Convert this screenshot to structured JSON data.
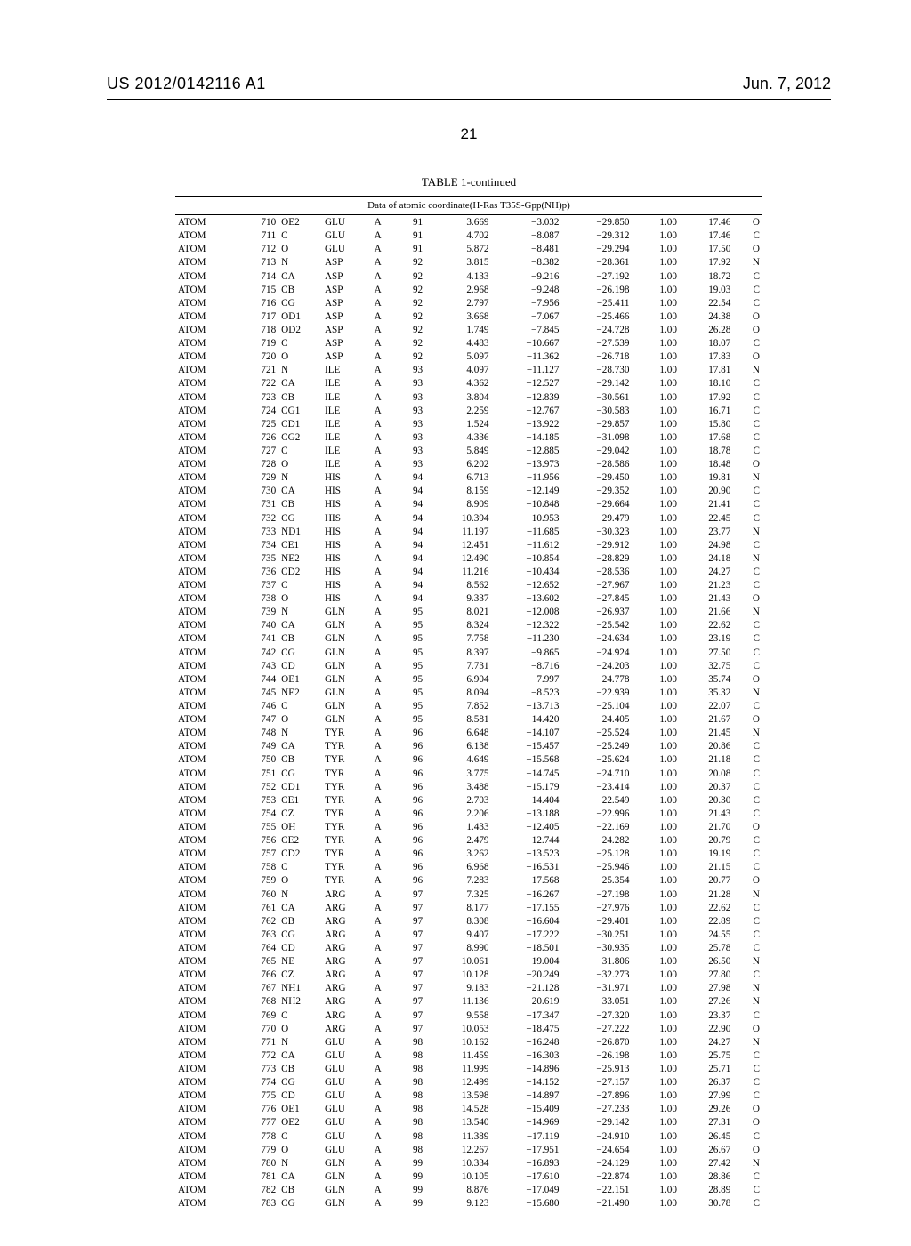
{
  "header": {
    "publication_number": "US 2012/0142116 A1",
    "date": "Jun. 7, 2012"
  },
  "page_number": "21",
  "table": {
    "title": "TABLE 1-continued",
    "subtitle": "Data of atomic coordinate(H-Ras T35S-Gpp(NH)p)",
    "rows": [
      [
        "ATOM",
        "710",
        "OE2",
        "GLU",
        "A",
        "91",
        "3.669",
        "−3.032",
        "−29.850",
        "1.00",
        "17.46",
        "O"
      ],
      [
        "ATOM",
        "711",
        "C",
        "GLU",
        "A",
        "91",
        "4.702",
        "−8.087",
        "−29.312",
        "1.00",
        "17.46",
        "C"
      ],
      [
        "ATOM",
        "712",
        "O",
        "GLU",
        "A",
        "91",
        "5.872",
        "−8.481",
        "−29.294",
        "1.00",
        "17.50",
        "O"
      ],
      [
        "ATOM",
        "713",
        "N",
        "ASP",
        "A",
        "92",
        "3.815",
        "−8.382",
        "−28.361",
        "1.00",
        "17.92",
        "N"
      ],
      [
        "ATOM",
        "714",
        "CA",
        "ASP",
        "A",
        "92",
        "4.133",
        "−9.216",
        "−27.192",
        "1.00",
        "18.72",
        "C"
      ],
      [
        "ATOM",
        "715",
        "CB",
        "ASP",
        "A",
        "92",
        "2.968",
        "−9.248",
        "−26.198",
        "1.00",
        "19.03",
        "C"
      ],
      [
        "ATOM",
        "716",
        "CG",
        "ASP",
        "A",
        "92",
        "2.797",
        "−7.956",
        "−25.411",
        "1.00",
        "22.54",
        "C"
      ],
      [
        "ATOM",
        "717",
        "OD1",
        "ASP",
        "A",
        "92",
        "3.668",
        "−7.067",
        "−25.466",
        "1.00",
        "24.38",
        "O"
      ],
      [
        "ATOM",
        "718",
        "OD2",
        "ASP",
        "A",
        "92",
        "1.749",
        "−7.845",
        "−24.728",
        "1.00",
        "26.28",
        "O"
      ],
      [
        "ATOM",
        "719",
        "C",
        "ASP",
        "A",
        "92",
        "4.483",
        "−10.667",
        "−27.539",
        "1.00",
        "18.07",
        "C"
      ],
      [
        "ATOM",
        "720",
        "O",
        "ASP",
        "A",
        "92",
        "5.097",
        "−11.362",
        "−26.718",
        "1.00",
        "17.83",
        "O"
      ],
      [
        "ATOM",
        "721",
        "N",
        "ILE",
        "A",
        "93",
        "4.097",
        "−11.127",
        "−28.730",
        "1.00",
        "17.81",
        "N"
      ],
      [
        "ATOM",
        "722",
        "CA",
        "ILE",
        "A",
        "93",
        "4.362",
        "−12.527",
        "−29.142",
        "1.00",
        "18.10",
        "C"
      ],
      [
        "ATOM",
        "723",
        "CB",
        "ILE",
        "A",
        "93",
        "3.804",
        "−12.839",
        "−30.561",
        "1.00",
        "17.92",
        "C"
      ],
      [
        "ATOM",
        "724",
        "CG1",
        "ILE",
        "A",
        "93",
        "2.259",
        "−12.767",
        "−30.583",
        "1.00",
        "16.71",
        "C"
      ],
      [
        "ATOM",
        "725",
        "CD1",
        "ILE",
        "A",
        "93",
        "1.524",
        "−13.922",
        "−29.857",
        "1.00",
        "15.80",
        "C"
      ],
      [
        "ATOM",
        "726",
        "CG2",
        "ILE",
        "A",
        "93",
        "4.336",
        "−14.185",
        "−31.098",
        "1.00",
        "17.68",
        "C"
      ],
      [
        "ATOM",
        "727",
        "C",
        "ILE",
        "A",
        "93",
        "5.849",
        "−12.885",
        "−29.042",
        "1.00",
        "18.78",
        "C"
      ],
      [
        "ATOM",
        "728",
        "O",
        "ILE",
        "A",
        "93",
        "6.202",
        "−13.973",
        "−28.586",
        "1.00",
        "18.48",
        "O"
      ],
      [
        "ATOM",
        "729",
        "N",
        "HIS",
        "A",
        "94",
        "6.713",
        "−11.956",
        "−29.450",
        "1.00",
        "19.81",
        "N"
      ],
      [
        "ATOM",
        "730",
        "CA",
        "HIS",
        "A",
        "94",
        "8.159",
        "−12.149",
        "−29.352",
        "1.00",
        "20.90",
        "C"
      ],
      [
        "ATOM",
        "731",
        "CB",
        "HIS",
        "A",
        "94",
        "8.909",
        "−10.848",
        "−29.664",
        "1.00",
        "21.41",
        "C"
      ],
      [
        "ATOM",
        "732",
        "CG",
        "HIS",
        "A",
        "94",
        "10.394",
        "−10.953",
        "−29.479",
        "1.00",
        "22.45",
        "C"
      ],
      [
        "ATOM",
        "733",
        "ND1",
        "HIS",
        "A",
        "94",
        "11.197",
        "−11.685",
        "−30.323",
        "1.00",
        "23.77",
        "N"
      ],
      [
        "ATOM",
        "734",
        "CE1",
        "HIS",
        "A",
        "94",
        "12.451",
        "−11.612",
        "−29.912",
        "1.00",
        "24.98",
        "C"
      ],
      [
        "ATOM",
        "735",
        "NE2",
        "HIS",
        "A",
        "94",
        "12.490",
        "−10.854",
        "−28.829",
        "1.00",
        "24.18",
        "N"
      ],
      [
        "ATOM",
        "736",
        "CD2",
        "HIS",
        "A",
        "94",
        "11.216",
        "−10.434",
        "−28.536",
        "1.00",
        "24.27",
        "C"
      ],
      [
        "ATOM",
        "737",
        "C",
        "HIS",
        "A",
        "94",
        "8.562",
        "−12.652",
        "−27.967",
        "1.00",
        "21.23",
        "C"
      ],
      [
        "ATOM",
        "738",
        "O",
        "HIS",
        "A",
        "94",
        "9.337",
        "−13.602",
        "−27.845",
        "1.00",
        "21.43",
        "O"
      ],
      [
        "ATOM",
        "739",
        "N",
        "GLN",
        "A",
        "95",
        "8.021",
        "−12.008",
        "−26.937",
        "1.00",
        "21.66",
        "N"
      ],
      [
        "ATOM",
        "740",
        "CA",
        "GLN",
        "A",
        "95",
        "8.324",
        "−12.322",
        "−25.542",
        "1.00",
        "22.62",
        "C"
      ],
      [
        "ATOM",
        "741",
        "CB",
        "GLN",
        "A",
        "95",
        "7.758",
        "−11.230",
        "−24.634",
        "1.00",
        "23.19",
        "C"
      ],
      [
        "ATOM",
        "742",
        "CG",
        "GLN",
        "A",
        "95",
        "8.397",
        "−9.865",
        "−24.924",
        "1.00",
        "27.50",
        "C"
      ],
      [
        "ATOM",
        "743",
        "CD",
        "GLN",
        "A",
        "95",
        "7.731",
        "−8.716",
        "−24.203",
        "1.00",
        "32.75",
        "C"
      ],
      [
        "ATOM",
        "744",
        "OE1",
        "GLN",
        "A",
        "95",
        "6.904",
        "−7.997",
        "−24.778",
        "1.00",
        "35.74",
        "O"
      ],
      [
        "ATOM",
        "745",
        "NE2",
        "GLN",
        "A",
        "95",
        "8.094",
        "−8.523",
        "−22.939",
        "1.00",
        "35.32",
        "N"
      ],
      [
        "ATOM",
        "746",
        "C",
        "GLN",
        "A",
        "95",
        "7.852",
        "−13.713",
        "−25.104",
        "1.00",
        "22.07",
        "C"
      ],
      [
        "ATOM",
        "747",
        "O",
        "GLN",
        "A",
        "95",
        "8.581",
        "−14.420",
        "−24.405",
        "1.00",
        "21.67",
        "O"
      ],
      [
        "ATOM",
        "748",
        "N",
        "TYR",
        "A",
        "96",
        "6.648",
        "−14.107",
        "−25.524",
        "1.00",
        "21.45",
        "N"
      ],
      [
        "ATOM",
        "749",
        "CA",
        "TYR",
        "A",
        "96",
        "6.138",
        "−15.457",
        "−25.249",
        "1.00",
        "20.86",
        "C"
      ],
      [
        "ATOM",
        "750",
        "CB",
        "TYR",
        "A",
        "96",
        "4.649",
        "−15.568",
        "−25.624",
        "1.00",
        "21.18",
        "C"
      ],
      [
        "ATOM",
        "751",
        "CG",
        "TYR",
        "A",
        "96",
        "3.775",
        "−14.745",
        "−24.710",
        "1.00",
        "20.08",
        "C"
      ],
      [
        "ATOM",
        "752",
        "CD1",
        "TYR",
        "A",
        "96",
        "3.488",
        "−15.179",
        "−23.414",
        "1.00",
        "20.37",
        "C"
      ],
      [
        "ATOM",
        "753",
        "CE1",
        "TYR",
        "A",
        "96",
        "2.703",
        "−14.404",
        "−22.549",
        "1.00",
        "20.30",
        "C"
      ],
      [
        "ATOM",
        "754",
        "CZ",
        "TYR",
        "A",
        "96",
        "2.206",
        "−13.188",
        "−22.996",
        "1.00",
        "21.43",
        "C"
      ],
      [
        "ATOM",
        "755",
        "OH",
        "TYR",
        "A",
        "96",
        "1.433",
        "−12.405",
        "−22.169",
        "1.00",
        "21.70",
        "O"
      ],
      [
        "ATOM",
        "756",
        "CE2",
        "TYR",
        "A",
        "96",
        "2.479",
        "−12.744",
        "−24.282",
        "1.00",
        "20.79",
        "C"
      ],
      [
        "ATOM",
        "757",
        "CD2",
        "TYR",
        "A",
        "96",
        "3.262",
        "−13.523",
        "−25.128",
        "1.00",
        "19.19",
        "C"
      ],
      [
        "ATOM",
        "758",
        "C",
        "TYR",
        "A",
        "96",
        "6.968",
        "−16.531",
        "−25.946",
        "1.00",
        "21.15",
        "C"
      ],
      [
        "ATOM",
        "759",
        "O",
        "TYR",
        "A",
        "96",
        "7.283",
        "−17.568",
        "−25.354",
        "1.00",
        "20.77",
        "O"
      ],
      [
        "ATOM",
        "760",
        "N",
        "ARG",
        "A",
        "97",
        "7.325",
        "−16.267",
        "−27.198",
        "1.00",
        "21.28",
        "N"
      ],
      [
        "ATOM",
        "761",
        "CA",
        "ARG",
        "A",
        "97",
        "8.177",
        "−17.155",
        "−27.976",
        "1.00",
        "22.62",
        "C"
      ],
      [
        "ATOM",
        "762",
        "CB",
        "ARG",
        "A",
        "97",
        "8.308",
        "−16.604",
        "−29.401",
        "1.00",
        "22.89",
        "C"
      ],
      [
        "ATOM",
        "763",
        "CG",
        "ARG",
        "A",
        "97",
        "9.407",
        "−17.222",
        "−30.251",
        "1.00",
        "24.55",
        "C"
      ],
      [
        "ATOM",
        "764",
        "CD",
        "ARG",
        "A",
        "97",
        "8.990",
        "−18.501",
        "−30.935",
        "1.00",
        "25.78",
        "C"
      ],
      [
        "ATOM",
        "765",
        "NE",
        "ARG",
        "A",
        "97",
        "10.061",
        "−19.004",
        "−31.806",
        "1.00",
        "26.50",
        "N"
      ],
      [
        "ATOM",
        "766",
        "CZ",
        "ARG",
        "A",
        "97",
        "10.128",
        "−20.249",
        "−32.273",
        "1.00",
        "27.80",
        "C"
      ],
      [
        "ATOM",
        "767",
        "NH1",
        "ARG",
        "A",
        "97",
        "9.183",
        "−21.128",
        "−31.971",
        "1.00",
        "27.98",
        "N"
      ],
      [
        "ATOM",
        "768",
        "NH2",
        "ARG",
        "A",
        "97",
        "11.136",
        "−20.619",
        "−33.051",
        "1.00",
        "27.26",
        "N"
      ],
      [
        "ATOM",
        "769",
        "C",
        "ARG",
        "A",
        "97",
        "9.558",
        "−17.347",
        "−27.320",
        "1.00",
        "23.37",
        "C"
      ],
      [
        "ATOM",
        "770",
        "O",
        "ARG",
        "A",
        "97",
        "10.053",
        "−18.475",
        "−27.222",
        "1.00",
        "22.90",
        "O"
      ],
      [
        "ATOM",
        "771",
        "N",
        "GLU",
        "A",
        "98",
        "10.162",
        "−16.248",
        "−26.870",
        "1.00",
        "24.27",
        "N"
      ],
      [
        "ATOM",
        "772",
        "CA",
        "GLU",
        "A",
        "98",
        "11.459",
        "−16.303",
        "−26.198",
        "1.00",
        "25.75",
        "C"
      ],
      [
        "ATOM",
        "773",
        "CB",
        "GLU",
        "A",
        "98",
        "11.999",
        "−14.896",
        "−25.913",
        "1.00",
        "25.71",
        "C"
      ],
      [
        "ATOM",
        "774",
        "CG",
        "GLU",
        "A",
        "98",
        "12.499",
        "−14.152",
        "−27.157",
        "1.00",
        "26.37",
        "C"
      ],
      [
        "ATOM",
        "775",
        "CD",
        "GLU",
        "A",
        "98",
        "13.598",
        "−14.897",
        "−27.896",
        "1.00",
        "27.99",
        "C"
      ],
      [
        "ATOM",
        "776",
        "OE1",
        "GLU",
        "A",
        "98",
        "14.528",
        "−15.409",
        "−27.233",
        "1.00",
        "29.26",
        "O"
      ],
      [
        "ATOM",
        "777",
        "OE2",
        "GLU",
        "A",
        "98",
        "13.540",
        "−14.969",
        "−29.142",
        "1.00",
        "27.31",
        "O"
      ],
      [
        "ATOM",
        "778",
        "C",
        "GLU",
        "A",
        "98",
        "11.389",
        "−17.119",
        "−24.910",
        "1.00",
        "26.45",
        "C"
      ],
      [
        "ATOM",
        "779",
        "O",
        "GLU",
        "A",
        "98",
        "12.267",
        "−17.951",
        "−24.654",
        "1.00",
        "26.67",
        "O"
      ],
      [
        "ATOM",
        "780",
        "N",
        "GLN",
        "A",
        "99",
        "10.334",
        "−16.893",
        "−24.129",
        "1.00",
        "27.42",
        "N"
      ],
      [
        "ATOM",
        "781",
        "CA",
        "GLN",
        "A",
        "99",
        "10.105",
        "−17.610",
        "−22.874",
        "1.00",
        "28.86",
        "C"
      ],
      [
        "ATOM",
        "782",
        "CB",
        "GLN",
        "A",
        "99",
        "8.876",
        "−17.049",
        "−22.151",
        "1.00",
        "28.89",
        "C"
      ],
      [
        "ATOM",
        "783",
        "CG",
        "GLN",
        "A",
        "99",
        "9.123",
        "−15.680",
        "−21.490",
        "1.00",
        "30.78",
        "C"
      ]
    ]
  }
}
